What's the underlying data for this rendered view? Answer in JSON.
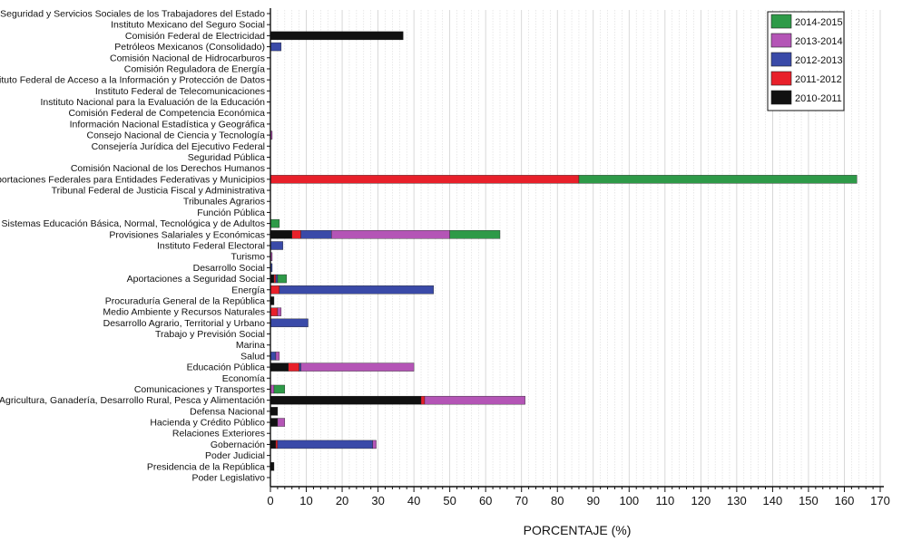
{
  "chart_data": {
    "type": "bar",
    "orientation": "horizontal",
    "stacked": true,
    "xlabel": "PORCENTAJE (%)",
    "xlim": [
      0,
      170
    ],
    "x_ticks": [
      "0",
      "10",
      "20",
      "30",
      "40",
      "50",
      "60",
      "70",
      "80",
      "90",
      "100",
      "110",
      "120",
      "130",
      "140",
      "150",
      "160",
      "170"
    ],
    "grid": true,
    "legend_position": "top-right",
    "categories": [
      "Instituto de Seguridad y Servicios Sociales de los Trabajadores del Estado",
      "Instituto Mexicano del Seguro Social",
      "Comisión Federal de Electricidad",
      "Petróleos Mexicanos (Consolidado)",
      "Comisión Nacional de Hidrocarburos",
      "Comisión Reguladora de Energía",
      "Instituto Federal de Acceso a la Información y Protección de Datos",
      "Instituto Federal de Telecomunicaciones",
      "Instituto Nacional para la Evaluación de la Educación",
      "Comisión Federal de Competencia Económica",
      "Información Nacional Estadística y Geográfica",
      "Consejo Nacional de Ciencia y Tecnología",
      "Consejería Jurídica del Ejecutivo Federal",
      "Seguridad Pública",
      "Comisión Nacional de los Derechos Humanos",
      "Aportaciones Federales para Entidades Federativas y Municipios",
      "Tribunal Federal de Justicia Fiscal y Administrativa",
      "Tribunales Agrarios",
      "Función Pública",
      "Prev y Aport Sistemas Educación Básica, Normal, Tecnológica y de Adultos",
      "Provisiones Salariales y Económicas",
      "Instituto Federal Electoral",
      "Turismo",
      "Desarrollo Social",
      "Aportaciones a Seguridad Social",
      "Energía",
      "Procuraduría General de la República",
      "Medio Ambiente y Recursos Naturales",
      "Desarrollo Agrario, Territorial y Urbano",
      "Trabajo y Previsión Social",
      "Marina",
      "Salud",
      "Educación Pública",
      "Economía",
      "Comunicaciones y Transportes",
      "Agricultura, Ganadería, Desarrollo Rural, Pesca y Alimentación",
      "Defensa Nacional",
      "Hacienda y Crédito Público",
      "Relaciones Exteriores",
      "Gobernación",
      "Poder Judicial",
      "Presidencia de la República",
      "Poder Legislativo"
    ],
    "series": [
      {
        "name": "2010-2011",
        "color": "#111111",
        "values": [
          0,
          0,
          37,
          0,
          0,
          0,
          0,
          0,
          0,
          0,
          0,
          0,
          0,
          0,
          0,
          0,
          0,
          0,
          0,
          0,
          6,
          0,
          0,
          0,
          1,
          0,
          1,
          0,
          0,
          0,
          0,
          0,
          5,
          0,
          0,
          42,
          2,
          2,
          0,
          1.5,
          0,
          1,
          0
        ]
      },
      {
        "name": "2011-2012",
        "color": "#e8202a",
        "values": [
          0,
          0,
          0,
          0,
          0,
          0,
          0,
          0,
          0,
          0,
          0,
          0,
          0,
          0,
          0,
          86,
          0,
          0,
          0,
          0,
          2.5,
          0,
          0,
          0,
          0.5,
          2.5,
          0,
          2,
          0,
          0,
          0,
          0,
          3,
          0,
          0,
          1,
          0,
          0,
          0,
          0.5,
          0,
          0,
          0
        ]
      },
      {
        "name": "2012-2013",
        "color": "#3a4aa8",
        "values": [
          0,
          0,
          0,
          3,
          0,
          0,
          0,
          0,
          0,
          0,
          0,
          0,
          0,
          0,
          0,
          0,
          0,
          0,
          0,
          0,
          8.5,
          3.5,
          0,
          0.5,
          0.5,
          43,
          0,
          0,
          10.5,
          0,
          0,
          1.5,
          0.5,
          0,
          0,
          0,
          0,
          0,
          0,
          26.5,
          0,
          0,
          0
        ]
      },
      {
        "name": "2013-2014",
        "color": "#b455b6",
        "values": [
          0,
          0,
          0,
          0,
          0,
          0,
          0,
          0,
          0,
          0,
          0,
          0.5,
          0,
          0,
          0,
          0,
          0,
          0,
          0,
          0,
          33,
          0,
          0.5,
          0,
          0,
          0,
          0,
          1,
          0,
          0,
          0,
          1,
          31.5,
          0,
          1,
          28,
          0,
          2,
          0,
          1,
          0,
          0,
          0
        ]
      },
      {
        "name": "2014-2015",
        "color": "#2e9a48",
        "values": [
          0,
          0,
          0,
          0,
          0,
          0,
          0,
          0,
          0,
          0,
          0,
          0,
          0,
          0,
          0,
          77.5,
          0,
          0,
          0,
          2.5,
          14,
          0,
          0,
          0,
          2.5,
          0,
          0,
          0,
          0,
          0,
          0,
          0,
          0,
          0,
          3,
          0,
          0,
          0,
          0,
          0,
          0,
          0,
          0
        ]
      }
    ]
  }
}
